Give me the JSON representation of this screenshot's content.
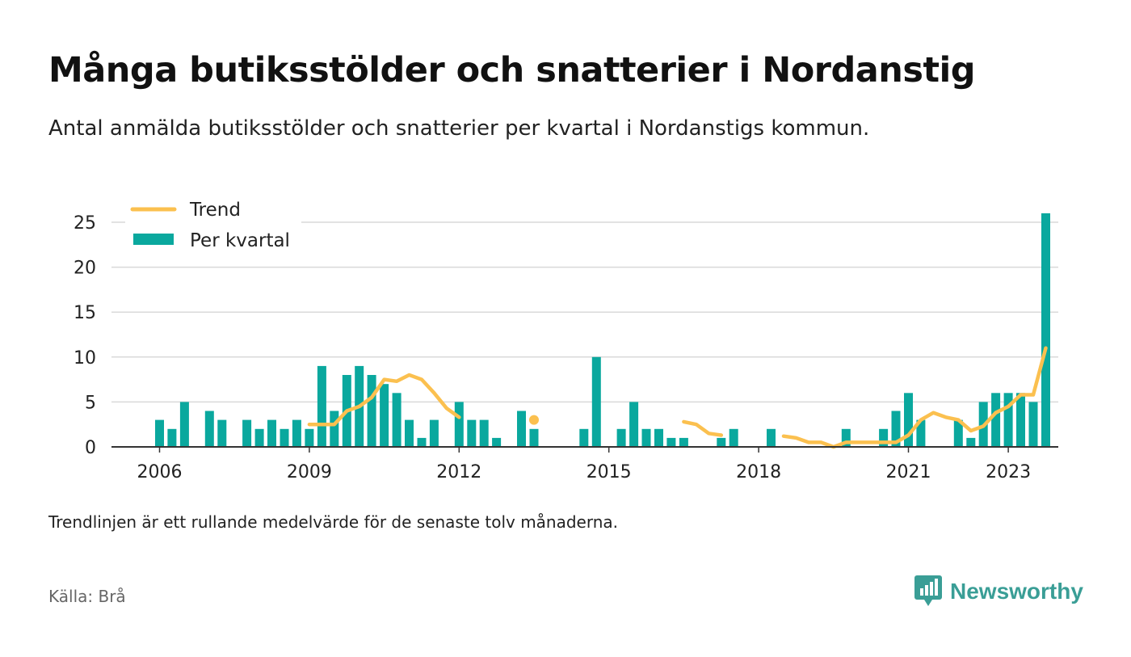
{
  "header": {
    "title": "Många butiksstölder och snatterier i Nordanstig",
    "subtitle": "Antal anmälda butiksstölder och snatterier per kvartal i Nordanstigs kommun."
  },
  "footer": {
    "note": "Trendlinjen är ett rullande medelvärde för de senaste tolv månaderna.",
    "source": "Källa: Brå",
    "brand": "Newsworthy",
    "brand_icon": "newsworthy-logo-icon"
  },
  "colors": {
    "bar": "#0aa89e",
    "trend": "#fbc04f",
    "grid": "#d9d9d9",
    "axis": "#333333",
    "brand": "#3a9e96"
  },
  "chart_data": {
    "type": "bar",
    "x_unit": "quarter",
    "xlim": [
      "2005Q1",
      "2023Q4"
    ],
    "ylim": [
      0,
      25
    ],
    "yticks": [
      0,
      5,
      10,
      15,
      20,
      25
    ],
    "xticks": [
      "2006",
      "2009",
      "2012",
      "2015",
      "2018",
      "2021",
      "2023"
    ],
    "grid": true,
    "legend_position": "top-left",
    "series": [
      {
        "name": "Per kvartal",
        "kind": "bar",
        "points": [
          [
            "2006Q1",
            3
          ],
          [
            "2006Q2",
            2
          ],
          [
            "2006Q3",
            5
          ],
          [
            "2007Q1",
            4
          ],
          [
            "2007Q2",
            3
          ],
          [
            "2007Q4",
            3
          ],
          [
            "2008Q1",
            2
          ],
          [
            "2008Q2",
            3
          ],
          [
            "2008Q3",
            2
          ],
          [
            "2008Q4",
            3
          ],
          [
            "2009Q1",
            2
          ],
          [
            "2009Q2",
            9
          ],
          [
            "2009Q3",
            4
          ],
          [
            "2009Q4",
            8
          ],
          [
            "2010Q1",
            9
          ],
          [
            "2010Q2",
            8
          ],
          [
            "2010Q3",
            7
          ],
          [
            "2010Q4",
            6
          ],
          [
            "2011Q1",
            3
          ],
          [
            "2011Q2",
            1
          ],
          [
            "2011Q3",
            3
          ],
          [
            "2012Q1",
            5
          ],
          [
            "2012Q2",
            3
          ],
          [
            "2012Q3",
            3
          ],
          [
            "2012Q4",
            1
          ],
          [
            "2013Q2",
            4
          ],
          [
            "2013Q3",
            2
          ],
          [
            "2014Q3",
            2
          ],
          [
            "2014Q4",
            10
          ],
          [
            "2015Q2",
            2
          ],
          [
            "2015Q3",
            5
          ],
          [
            "2015Q4",
            2
          ],
          [
            "2016Q1",
            2
          ],
          [
            "2016Q2",
            1
          ],
          [
            "2016Q3",
            1
          ],
          [
            "2017Q2",
            1
          ],
          [
            "2017Q3",
            2
          ],
          [
            "2018Q2",
            2
          ],
          [
            "2019Q4",
            2
          ],
          [
            "2020Q3",
            2
          ],
          [
            "2020Q4",
            4
          ],
          [
            "2021Q1",
            6
          ],
          [
            "2021Q2",
            3
          ],
          [
            "2022Q1",
            3
          ],
          [
            "2022Q2",
            1
          ],
          [
            "2022Q3",
            5
          ],
          [
            "2022Q4",
            6
          ],
          [
            "2023Q1",
            6
          ],
          [
            "2023Q2",
            6
          ],
          [
            "2023Q3",
            5
          ],
          [
            "2023Q4",
            26
          ]
        ]
      },
      {
        "name": "Trend",
        "kind": "line",
        "segments": [
          [
            [
              "2009Q1",
              2.5
            ],
            [
              "2009Q2",
              2.5
            ],
            [
              "2009Q3",
              2.5
            ],
            [
              "2009Q4",
              4
            ],
            [
              "2010Q1",
              4.5
            ],
            [
              "2010Q2",
              5.5
            ],
            [
              "2010Q3",
              7.5
            ],
            [
              "2010Q4",
              7.3
            ],
            [
              "2011Q1",
              8
            ],
            [
              "2011Q2",
              7.5
            ],
            [
              "2011Q3",
              6
            ],
            [
              "2011Q4",
              4.3
            ],
            [
              "2012Q1",
              3.3
            ]
          ],
          [
            [
              "2013Q3",
              3
            ]
          ],
          [
            [
              "2016Q3",
              2.8
            ],
            [
              "2016Q4",
              2.5
            ],
            [
              "2017Q1",
              1.5
            ],
            [
              "2017Q2",
              1.3
            ]
          ],
          [
            [
              "2018Q3",
              1.2
            ],
            [
              "2018Q4",
              1
            ],
            [
              "2019Q1",
              0.5
            ],
            [
              "2019Q2",
              0.5
            ],
            [
              "2019Q3",
              0
            ],
            [
              "2019Q4",
              0.5
            ],
            [
              "2020Q1",
              0.5
            ],
            [
              "2020Q2",
              0.5
            ],
            [
              "2020Q3",
              0.5
            ],
            [
              "2020Q4",
              0.5
            ],
            [
              "2021Q1",
              1.3
            ],
            [
              "2021Q2",
              3
            ],
            [
              "2021Q3",
              3.8
            ],
            [
              "2021Q4",
              3.3
            ],
            [
              "2022Q1",
              3
            ],
            [
              "2022Q2",
              1.8
            ],
            [
              "2022Q3",
              2.3
            ],
            [
              "2022Q4",
              3.8
            ],
            [
              "2023Q1",
              4.5
            ],
            [
              "2023Q2",
              5.8
            ],
            [
              "2023Q3",
              5.8
            ],
            [
              "2023Q4",
              11
            ]
          ]
        ]
      }
    ]
  }
}
